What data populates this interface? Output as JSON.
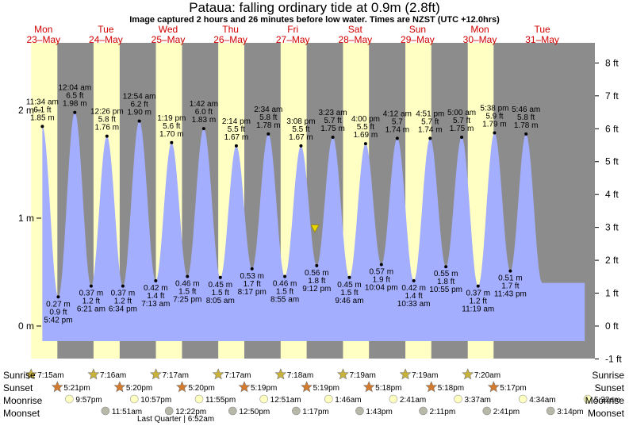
{
  "title": "Pataua: falling  ordinary tide at 0.9m (2.8ft)",
  "subtitle": "Image captured 2 hours and 26 minutes before low water. Times are NZST (UTC +12.0hrs)",
  "colors": {
    "water": "#a4aeff",
    "day": "#ffffc4",
    "night": "#8c8c8c",
    "datecolor": "#d10000",
    "pointer": "#e8d800"
  },
  "chart_data": {
    "type": "area",
    "title": "Pataua: falling  ordinary tide at 0.9m (2.8ft)",
    "xlabel": "",
    "ylabel": "",
    "ylim_m": [
      -0.24,
      2.63
    ],
    "left_axis_ticks": [
      "0 m",
      "1 m",
      "2 m"
    ],
    "right_axis_ticks": [
      "-1 ft",
      "0 ft",
      "1 ft",
      "2 ft",
      "3 ft",
      "4 ft",
      "5 ft",
      "6 ft",
      "7 ft",
      "8 ft"
    ],
    "days": [
      {
        "dow": "Mon",
        "date": "23–May"
      },
      {
        "dow": "Tue",
        "date": "24–May"
      },
      {
        "dow": "Wed",
        "date": "25–May"
      },
      {
        "dow": "Thu",
        "date": "26–May"
      },
      {
        "dow": "Fri",
        "date": "27–May"
      },
      {
        "dow": "Sat",
        "date": "28–May"
      },
      {
        "dow": "Sun",
        "date": "29–May"
      },
      {
        "dow": "Mon",
        "date": "30–May"
      },
      {
        "dow": "Tue",
        "date": "31–May"
      }
    ],
    "current_level_m": 0.9,
    "tides": [
      {
        "type": "high",
        "day": 0,
        "time": "11:34 am",
        "ft": "6.1 ft",
        "m": 1.85,
        "ml": "1.85 m"
      },
      {
        "type": "low",
        "day": 0,
        "time": "5:42 pm",
        "ft": "0.9 ft",
        "m": 0.27,
        "ml": "0.27 m"
      },
      {
        "type": "high",
        "day": 1,
        "time": "12:04 am",
        "ft": "6.5 ft",
        "m": 1.98,
        "ml": "1.98 m"
      },
      {
        "type": "low",
        "day": 1,
        "time": "6:21 am",
        "ft": "1.2 ft",
        "m": 0.37,
        "ml": "0.37 m"
      },
      {
        "type": "high",
        "day": 1,
        "time": "12:26 pm",
        "ft": "5.8 ft",
        "m": 1.76,
        "ml": "1.76 m"
      },
      {
        "type": "low",
        "day": 1,
        "time": "6:34 pm",
        "ft": "1.2 ft",
        "m": 0.37,
        "ml": "0.37 m"
      },
      {
        "type": "high",
        "day": 2,
        "time": "12:54 am",
        "ft": "6.2 ft",
        "m": 1.9,
        "ml": "1.90 m"
      },
      {
        "type": "low",
        "day": 2,
        "time": "7:13 am",
        "ft": "1.4 ft",
        "m": 0.42,
        "ml": "0.42 m"
      },
      {
        "type": "high",
        "day": 2,
        "time": "1:19 pm",
        "ft": "5.6 ft",
        "m": 1.7,
        "ml": "1.70 m"
      },
      {
        "type": "low",
        "day": 2,
        "time": "7:25 pm",
        "ft": "1.5 ft",
        "m": 0.46,
        "ml": "0.46 m"
      },
      {
        "type": "high",
        "day": 3,
        "time": "1:42 am",
        "ft": "6.0 ft",
        "m": 1.83,
        "ml": "1.83 m"
      },
      {
        "type": "low",
        "day": 3,
        "time": "8:05 am",
        "ft": "1.5 ft",
        "m": 0.45,
        "ml": "0.45 m"
      },
      {
        "type": "high",
        "day": 3,
        "time": "2:14 pm",
        "ft": "5.5 ft",
        "m": 1.67,
        "ml": "1.67 m"
      },
      {
        "type": "low",
        "day": 3,
        "time": "8:17 pm",
        "ft": "1.7 ft",
        "m": 0.53,
        "ml": "0.53 m"
      },
      {
        "type": "high",
        "day": 4,
        "time": "2:34 am",
        "ft": "5.8 ft",
        "m": 1.78,
        "ml": "1.78 m"
      },
      {
        "type": "low",
        "day": 4,
        "time": "8:55 am",
        "ft": "1.5 ft",
        "m": 0.46,
        "ml": "0.46 m"
      },
      {
        "type": "high",
        "day": 4,
        "time": "3:08 pm",
        "ft": "5.5 ft",
        "m": 1.67,
        "ml": "1.67 m"
      },
      {
        "type": "low",
        "day": 4,
        "time": "9:12 pm",
        "ft": "1.8 ft",
        "m": 0.56,
        "ml": "0.56 m"
      },
      {
        "type": "high",
        "day": 5,
        "time": "3:23 am",
        "ft": "5.7 ft",
        "m": 1.75,
        "ml": "1.75 m"
      },
      {
        "type": "low",
        "day": 5,
        "time": "9:46 am",
        "ft": "1.5 ft",
        "m": 0.45,
        "ml": "0.45 m"
      },
      {
        "type": "high",
        "day": 5,
        "time": "4:00 pm",
        "ft": "5.5 ft",
        "m": 1.69,
        "ml": "1.69 m"
      },
      {
        "type": "low",
        "day": 5,
        "time": "10:04 pm",
        "ft": "1.9 ft",
        "m": 0.57,
        "ml": "0.57 m"
      },
      {
        "type": "high",
        "day": 6,
        "time": "4:12 am",
        "ft": "5.7",
        "m": 1.74,
        "ml": "1.74 m"
      },
      {
        "type": "low",
        "day": 6,
        "time": "10:33 am",
        "ft": "1.4 ft",
        "m": 0.42,
        "ml": "0.42 m"
      },
      {
        "type": "high",
        "day": 6,
        "time": "4:51 pm",
        "ft": "5.7 ft",
        "m": 1.74,
        "ml": "1.74 m"
      },
      {
        "type": "low",
        "day": 6,
        "time": "10:55 pm",
        "ft": "1.8 ft",
        "m": 0.55,
        "ml": "0.55 m"
      },
      {
        "type": "high",
        "day": 7,
        "time": "5:00 am",
        "ft": "5.7 ft",
        "m": 1.75,
        "ml": "1.75 m"
      },
      {
        "type": "low",
        "day": 7,
        "time": "11:19 am",
        "ft": "1.2 ft",
        "m": 0.37,
        "ml": "0.37 m"
      },
      {
        "type": "high",
        "day": 7,
        "time": "5:38 pm",
        "ft": "5.9 ft",
        "m": 1.79,
        "ml": "1.79 m"
      },
      {
        "type": "low",
        "day": 7,
        "time": "11:43 pm",
        "ft": "1.7 ft",
        "m": 0.51,
        "ml": "0.51 m"
      },
      {
        "type": "high",
        "day": 8,
        "time": "5:46 am",
        "ft": "5.8 ft",
        "m": 1.78,
        "ml": "1.78 m"
      }
    ],
    "sun": [
      {
        "rise": "7:15am",
        "set": "5:21pm"
      },
      {
        "rise": "7:16am",
        "set": "5:20pm"
      },
      {
        "rise": "7:17am",
        "set": "5:20pm"
      },
      {
        "rise": "7:17am",
        "set": "5:19pm"
      },
      {
        "rise": "7:18am",
        "set": "5:19pm"
      },
      {
        "rise": "7:19am",
        "set": "5:18pm"
      },
      {
        "rise": "7:19am",
        "set": "5:18pm"
      },
      {
        "rise": "7:20am",
        "set": "5:17pm"
      }
    ],
    "moonrise": [
      {
        "day": 0,
        "time": "9:57pm"
      },
      {
        "day": 1,
        "time": "10:57pm"
      },
      {
        "day": 2,
        "time": "11:55pm"
      },
      {
        "day": 4,
        "time": "12:51am"
      },
      {
        "day": 5,
        "time": "1:46am"
      },
      {
        "day": 6,
        "time": "2:41am"
      },
      {
        "day": 7,
        "time": "3:37am"
      },
      {
        "day": 8,
        "time": "4:34am"
      },
      {
        "day": 9,
        "time": "5:32am"
      }
    ],
    "moonset": [
      {
        "day": 1,
        "time": "11:51am"
      },
      {
        "day": 2,
        "time": "12:22pm"
      },
      {
        "day": 3,
        "time": "12:50pm"
      },
      {
        "day": 4,
        "time": "1:17pm"
      },
      {
        "day": 5,
        "time": "1:43pm"
      },
      {
        "day": 6,
        "time": "2:11pm"
      },
      {
        "day": 7,
        "time": "2:41pm"
      },
      {
        "day": 8,
        "time": "3:14pm"
      }
    ]
  },
  "rows": {
    "sunrise": "Sunrise",
    "sunset": "Sunset",
    "moonrise": "Moonrise",
    "moonset": "Moonset"
  },
  "moon_phase": "Last Quarter | 6:52am"
}
